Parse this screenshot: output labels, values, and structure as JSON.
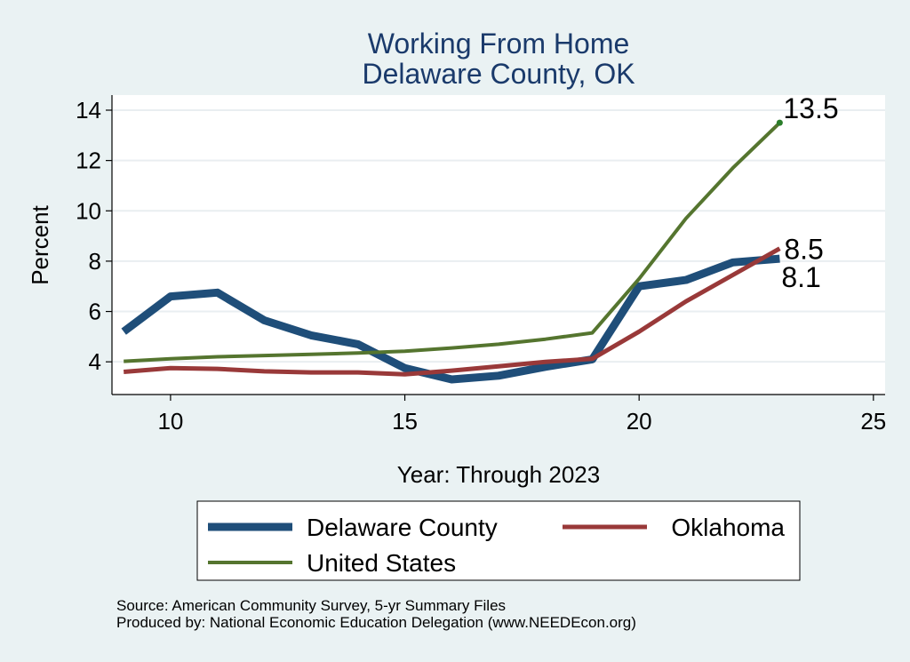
{
  "chart_data": {
    "type": "line",
    "title": "Working From Home",
    "subtitle": "Delaware County, OK",
    "xlabel": "Year: Through 2023",
    "ylabel": "Percent",
    "xlim": [
      8.75,
      25.25
    ],
    "ylim": [
      2.7,
      14.6
    ],
    "x_ticks": [
      10,
      15,
      20,
      25
    ],
    "y_ticks": [
      4,
      6,
      8,
      10,
      12,
      14
    ],
    "grid": true,
    "legend_position": "bottom",
    "series": [
      {
        "name": "Delaware County",
        "color": "#1f4e79",
        "x": [
          9,
          10,
          11,
          12,
          13,
          14,
          15,
          16,
          17,
          18,
          19,
          20,
          21,
          22,
          23
        ],
        "values": [
          5.2,
          6.6,
          6.75,
          5.65,
          5.05,
          4.7,
          3.75,
          3.3,
          3.45,
          3.8,
          4.1,
          7.0,
          7.25,
          7.95,
          8.1
        ],
        "end_label": "8.1"
      },
      {
        "name": "Oklahoma",
        "color": "#993939",
        "x": [
          9,
          10,
          11,
          12,
          13,
          14,
          15,
          16,
          17,
          18,
          19,
          20,
          21,
          22,
          23
        ],
        "values": [
          3.6,
          3.75,
          3.72,
          3.62,
          3.58,
          3.58,
          3.5,
          3.65,
          3.82,
          4.0,
          4.12,
          5.2,
          6.4,
          7.45,
          8.5
        ],
        "end_label": "8.5"
      },
      {
        "name": "United States",
        "color": "#55752f",
        "x": [
          9,
          10,
          11,
          12,
          13,
          14,
          15,
          16,
          17,
          18,
          19,
          20,
          21,
          22,
          23
        ],
        "values": [
          4.02,
          4.12,
          4.2,
          4.25,
          4.3,
          4.35,
          4.42,
          4.55,
          4.7,
          4.9,
          5.15,
          7.3,
          9.7,
          11.7,
          13.5
        ],
        "end_label": "13.5"
      }
    ],
    "legend_order": [
      "Delaware County",
      "Oklahoma",
      "United States"
    ]
  },
  "footer": {
    "source": "Source: American Community Survey, 5-yr Summary Files",
    "produced_by": "Produced by: National Economic Education Delegation (www.NEEDEcon.org)"
  },
  "colors": {
    "background": "#eaf2f3",
    "plot_background": "#ffffff",
    "grid": "#e9eef1",
    "title": "#1a3a6b"
  }
}
